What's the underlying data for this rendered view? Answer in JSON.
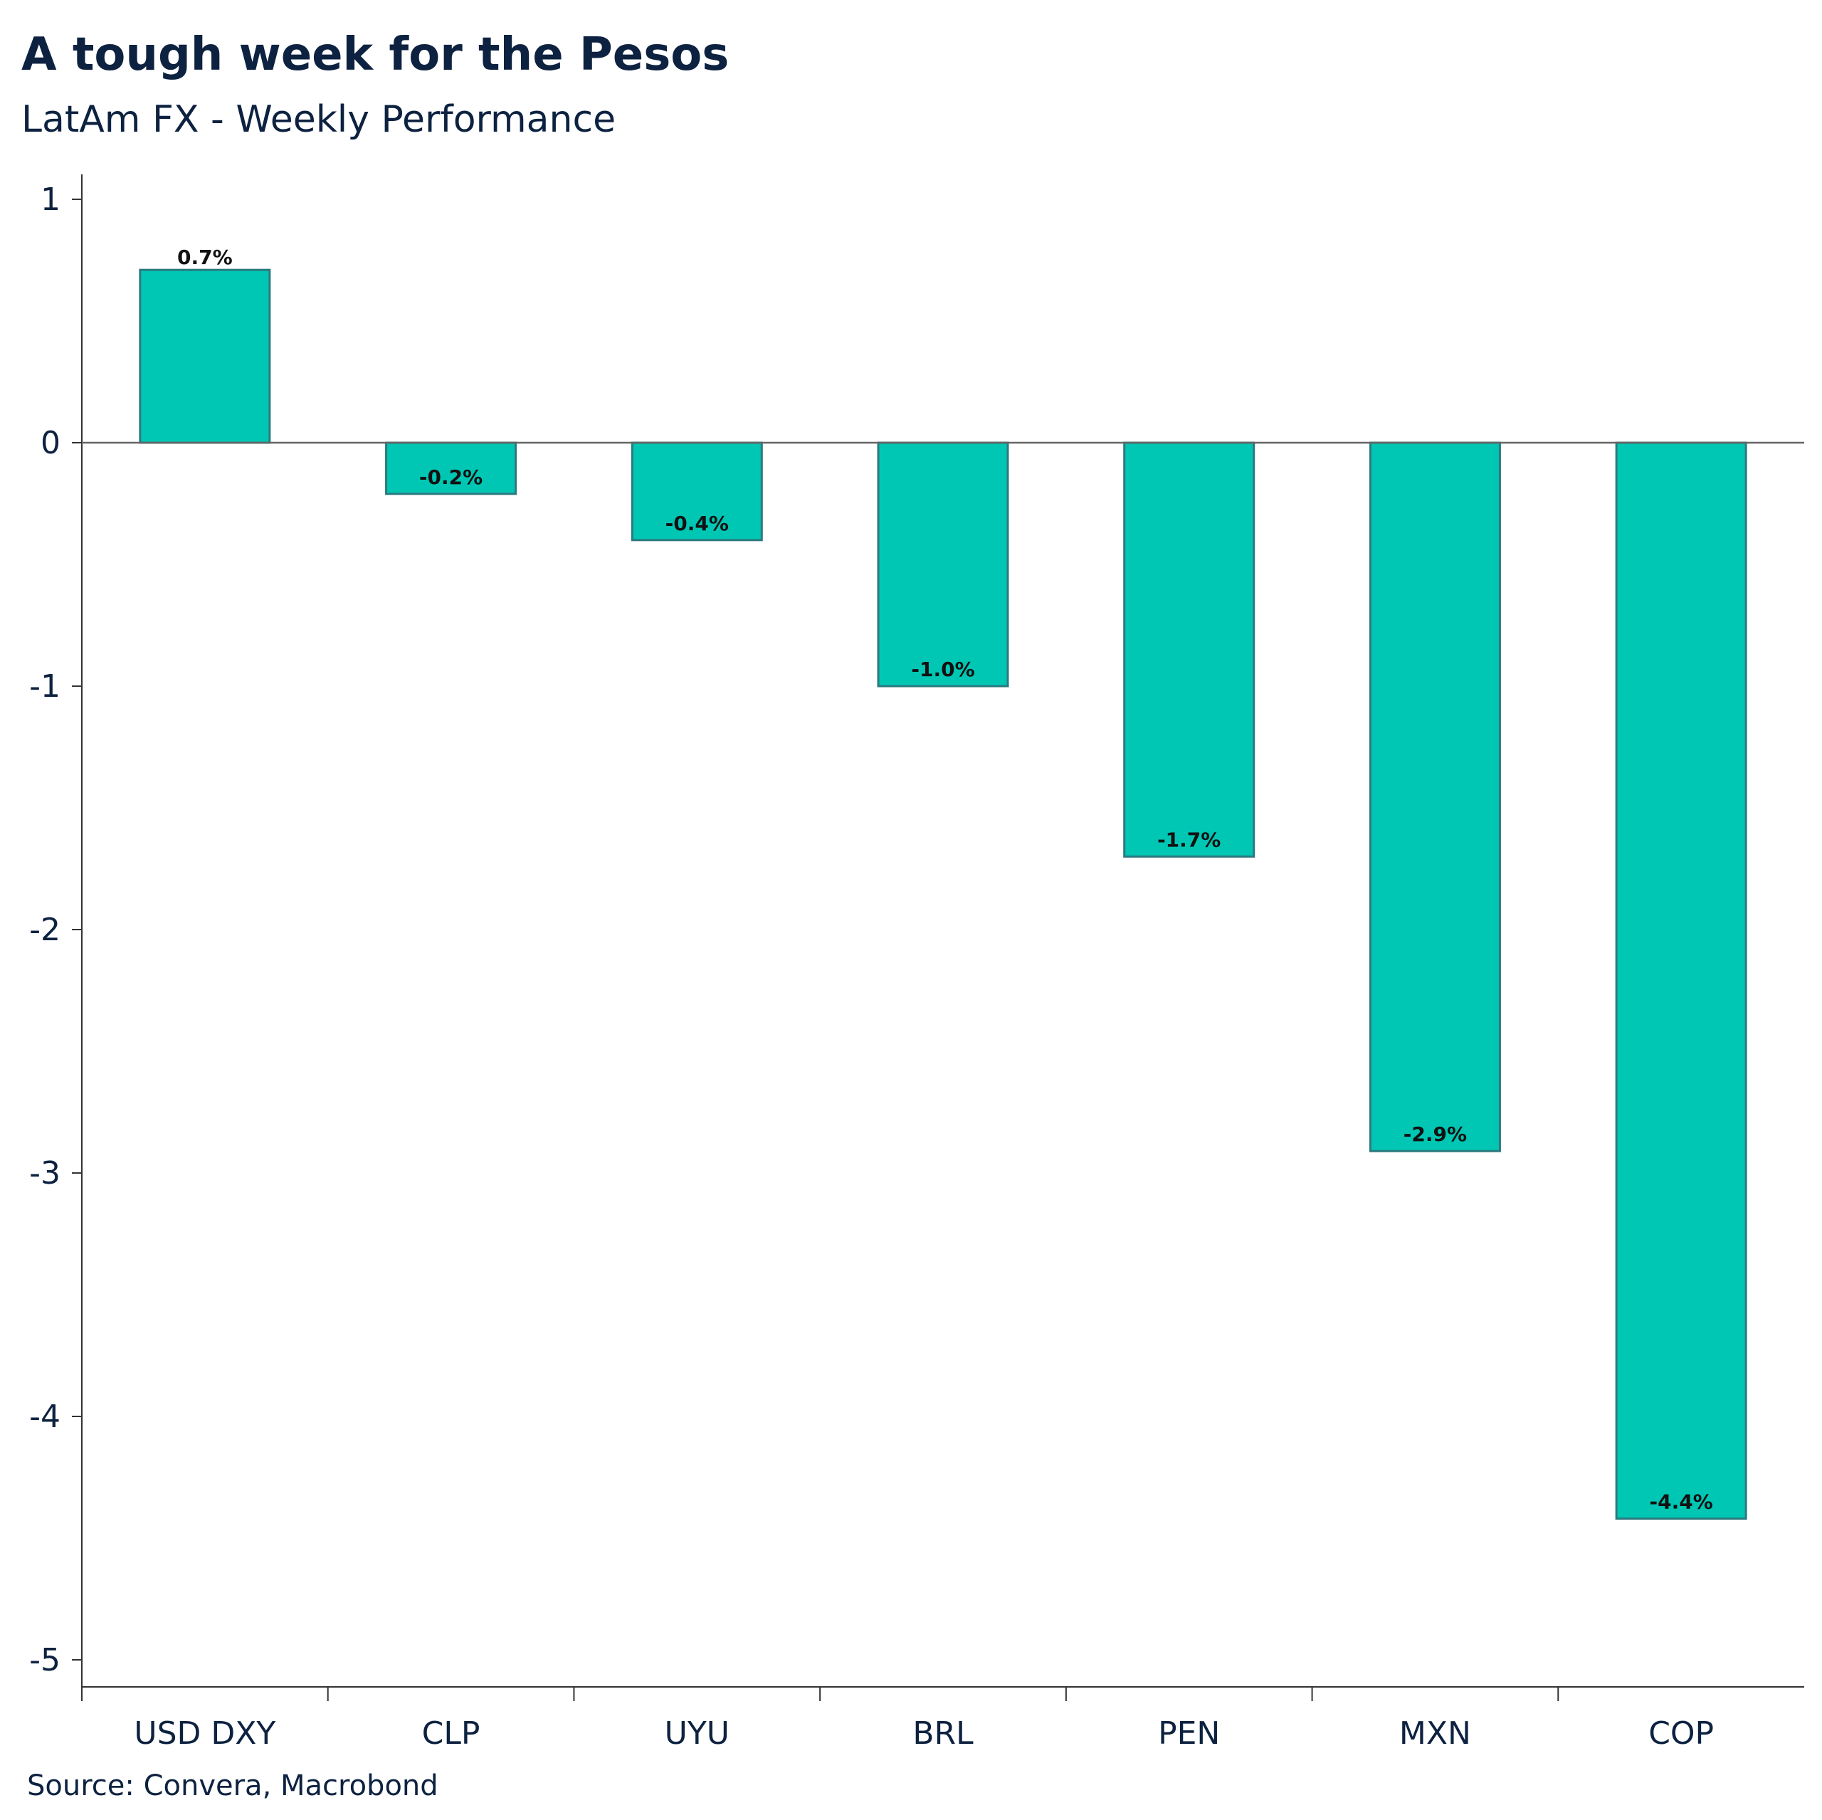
{
  "title": "A tough week for the Pesos",
  "subtitle": "LatAm FX - Weekly Performance",
  "source": "Source: Convera, Macrobond",
  "colors": {
    "bar_fill": "#00c7b4",
    "bar_stroke": "#2a7a7e",
    "axis": "#333333",
    "text": "#0d2240"
  },
  "chart_data": {
    "type": "bar",
    "categories": [
      "USD DXY",
      "CLP",
      "UYU",
      "BRL",
      "PEN",
      "MXN",
      "COP"
    ],
    "values": [
      0.71,
      -0.21,
      -0.4,
      -1.0,
      -1.7,
      -2.91,
      -4.42
    ],
    "data_labels": [
      "0.7%",
      "-0.2%",
      "-0.4%",
      "-1.0%",
      "-1.7%",
      "-2.9%",
      "-4.4%"
    ],
    "title": "A tough week for the Pesos",
    "subtitle": "LatAm FX - Weekly Performance",
    "xlabel": "",
    "ylabel": "",
    "ylim": [
      -5.1,
      1.1
    ],
    "yticks": [
      1,
      0,
      -1,
      -2,
      -3,
      -4,
      -5
    ],
    "grid": false,
    "legend": "none"
  }
}
